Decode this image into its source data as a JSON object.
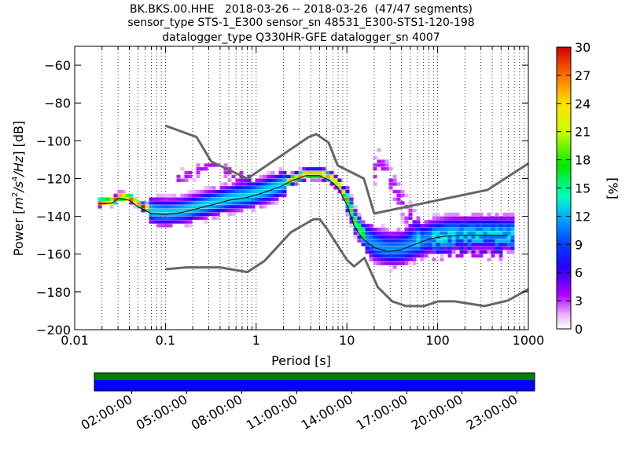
{
  "title_lines": [
    "BK.BKS.00.HHE   2018-03-26 -- 2018-03-26  (47/47 segments)",
    "sensor_type STS-1_E300 sensor_sn 48531_E300-STS1-120-198",
    "datalogger_type Q330HR-GFE datalogger_sn 4007"
  ],
  "chart_data": [
    {
      "type": "heatmap",
      "xlabel": "Period [s]",
      "ylabel_parts": {
        "pre": "Power [",
        "m": "m",
        "e2": "2",
        "s": "/s",
        "e4": "4",
        "hz": "/Hz",
        "post": "] [dB]"
      },
      "x_scale": "log",
      "xlim": [
        0.01,
        1000
      ],
      "ylim": [
        -200,
        -50
      ],
      "x_ticks": [
        {
          "value": 0.01,
          "label": "0.01"
        },
        {
          "value": 0.1,
          "label": "0.1"
        },
        {
          "value": 1,
          "label": "1"
        },
        {
          "value": 10,
          "label": "10"
        },
        {
          "value": 100,
          "label": "100"
        },
        {
          "value": 1000,
          "label": "1000"
        }
      ],
      "y_ticks": [
        -60,
        -80,
        -100,
        -120,
        -140,
        -160,
        -180,
        -200
      ],
      "y_tick_labels": [
        "−60",
        "−80",
        "−100",
        "−120",
        "−140",
        "−160",
        "−180",
        "−200"
      ],
      "grid": "dotted vertical",
      "colorbar": {
        "label": "[%]",
        "range": [
          0,
          30
        ],
        "ticks": [
          "0",
          "3",
          "6",
          "9",
          "12",
          "15",
          "18",
          "21",
          "24",
          "27",
          "30"
        ],
        "colormap": "pqlx"
      },
      "noise_model_upper": [
        [
          0.1,
          -92
        ],
        [
          0.22,
          -98
        ],
        [
          0.32,
          -111
        ],
        [
          0.8,
          -120
        ],
        [
          3.8,
          -98
        ],
        [
          4.6,
          -96.5
        ],
        [
          6.3,
          -101
        ],
        [
          7.9,
          -113
        ],
        [
          15.4,
          -120
        ],
        [
          20,
          -138.5
        ],
        [
          354.8,
          -126
        ],
        [
          1000,
          -112
        ]
      ],
      "noise_model_lower": [
        [
          0.1,
          -168
        ],
        [
          0.17,
          -167
        ],
        [
          0.4,
          -167
        ],
        [
          0.8,
          -169.5
        ],
        [
          1.24,
          -163.5
        ],
        [
          2.4,
          -148.5
        ],
        [
          4.3,
          -141.5
        ],
        [
          5.0,
          -141.5
        ],
        [
          6.0,
          -146.5
        ],
        [
          10,
          -163
        ],
        [
          12,
          -166.5
        ],
        [
          15.6,
          -162
        ],
        [
          21.9,
          -177.5
        ],
        [
          31.6,
          -185
        ],
        [
          45,
          -187.5
        ],
        [
          70.8,
          -187.5
        ],
        [
          101,
          -185
        ],
        [
          154,
          -185
        ],
        [
          328,
          -187.5
        ],
        [
          600,
          -184.5
        ],
        [
          1000,
          -178.5
        ]
      ],
      "mean_curve": [
        [
          0.018,
          -133
        ],
        [
          0.026,
          -132.5
        ],
        [
          0.03,
          -130
        ],
        [
          0.04,
          -131
        ],
        [
          0.05,
          -134
        ],
        [
          0.07,
          -137
        ],
        [
          0.1,
          -137
        ],
        [
          0.15,
          -136
        ],
        [
          0.22,
          -134.5
        ],
        [
          0.35,
          -132.5
        ],
        [
          0.5,
          -130.5
        ],
        [
          0.8,
          -129
        ],
        [
          1.2,
          -126.5
        ],
        [
          1.8,
          -124
        ],
        [
          2.5,
          -120
        ],
        [
          3.5,
          -118
        ],
        [
          5,
          -118
        ],
        [
          6.5,
          -120
        ],
        [
          8,
          -124
        ],
        [
          10,
          -133
        ],
        [
          12,
          -144
        ],
        [
          15,
          -151
        ],
        [
          20,
          -155.5
        ],
        [
          28,
          -157.5
        ],
        [
          38,
          -157
        ],
        [
          55,
          -153.5
        ],
        [
          80,
          -150.5
        ],
        [
          120,
          -149
        ],
        [
          200,
          -148.5
        ],
        [
          400,
          -148.5
        ],
        [
          600,
          -148.5
        ]
      ],
      "mode_curve": [
        [
          0.018,
          -133.5
        ],
        [
          0.026,
          -133
        ],
        [
          0.03,
          -130.5
        ],
        [
          0.04,
          -131.5
        ],
        [
          0.05,
          -135
        ],
        [
          0.07,
          -138.5
        ],
        [
          0.1,
          -139
        ],
        [
          0.15,
          -138
        ],
        [
          0.22,
          -136
        ],
        [
          0.35,
          -133.5
        ],
        [
          0.5,
          -131.5
        ],
        [
          0.8,
          -130
        ],
        [
          1.2,
          -127.5
        ],
        [
          1.8,
          -124.5
        ],
        [
          2.5,
          -121
        ],
        [
          3.5,
          -118.5
        ],
        [
          5,
          -118.5
        ],
        [
          6.5,
          -121
        ],
        [
          8,
          -125
        ],
        [
          10,
          -134
        ],
        [
          12,
          -145
        ],
        [
          15,
          -152
        ],
        [
          20,
          -156.5
        ],
        [
          28,
          -158.5
        ],
        [
          38,
          -158
        ],
        [
          55,
          -155
        ],
        [
          80,
          -152
        ],
        [
          120,
          -150.5
        ],
        [
          200,
          -150
        ],
        [
          400,
          -150
        ],
        [
          600,
          -150
        ]
      ]
    },
    {
      "type": "table",
      "name": "data-availability",
      "x_labels": [
        "02:00:00",
        "05:00:00",
        "08:00:00",
        "11:00:00",
        "14:00:00",
        "17:00:00",
        "20:00:00",
        "23:00:00"
      ],
      "colors": {
        "top": "#008000",
        "bottom": "#0000ff"
      }
    }
  ]
}
